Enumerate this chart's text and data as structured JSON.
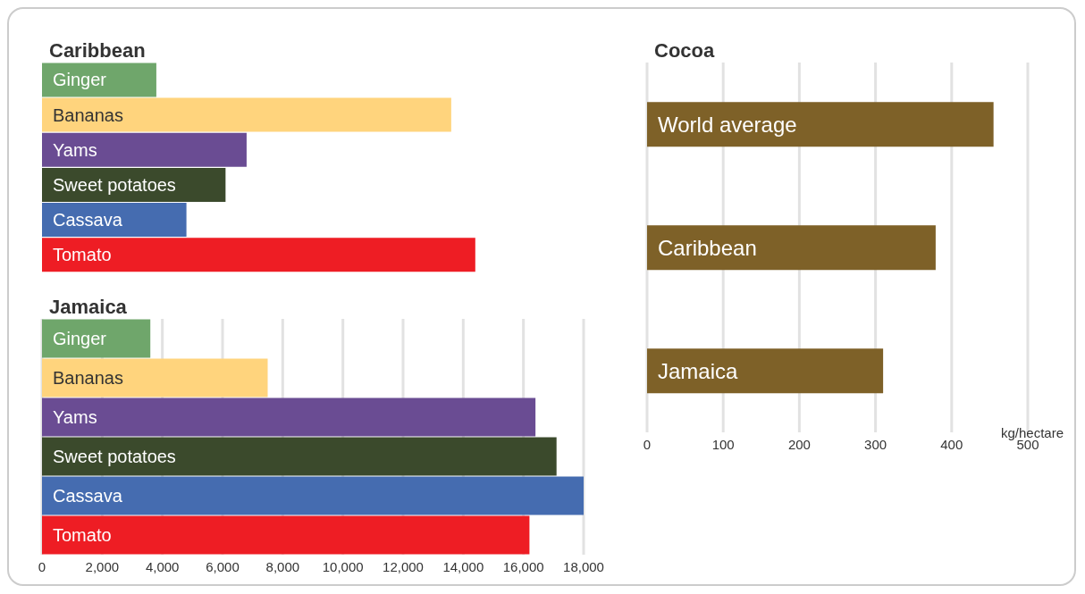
{
  "chart_data": [
    {
      "type": "bar",
      "orientation": "horizontal",
      "title": "Caribbean",
      "categories": [
        "Ginger",
        "Bananas",
        "Yams",
        "Sweet potatoes",
        "Cassava",
        "Tomato"
      ],
      "values": [
        3800,
        13600,
        6800,
        6100,
        4800,
        14400
      ],
      "colors": [
        "#6fa66b",
        "#ffd47d",
        "#6a4c93",
        "#3b4a2c",
        "#456cb0",
        "#ee1d24"
      ],
      "xlim": [
        0,
        18000
      ],
      "xticks": [
        0,
        2000,
        4000,
        6000,
        8000,
        10000,
        12000,
        14000,
        16000,
        18000
      ],
      "grid": "x",
      "tick_labels": "y"
    },
    {
      "type": "bar",
      "orientation": "horizontal",
      "title": "Jamaica",
      "categories": [
        "Ginger",
        "Bananas",
        "Yams",
        "Sweet potatoes",
        "Cassava",
        "Tomato"
      ],
      "values": [
        3600,
        7500,
        16400,
        17100,
        18000,
        16200
      ],
      "colors": [
        "#6fa66b",
        "#ffd47d",
        "#6a4c93",
        "#3b4a2c",
        "#456cb0",
        "#ee1d24"
      ],
      "xlim": [
        0,
        18000
      ],
      "xticks": [
        0,
        {
          "value": 2000,
          "label": "2,000"
        },
        {
          "value": 4000,
          "label": "4,000"
        },
        {
          "value": 6000,
          "label": "6,000"
        },
        {
          "value": 8000,
          "label": "8,000"
        },
        {
          "value": 10000,
          "label": "10,000"
        },
        {
          "value": 12000,
          "label": "12,000"
        },
        {
          "value": 14000,
          "label": "14,000"
        },
        {
          "value": 16000,
          "label": "16,000"
        },
        {
          "value": 18000,
          "label": "18,000"
        }
      ],
      "grid": "x"
    },
    {
      "type": "bar",
      "orientation": "horizontal",
      "title": "Cocoa",
      "xlabel": "kg/hectare",
      "categories": [
        "World average",
        "Caribbean",
        "Jamaica"
      ],
      "values": [
        455,
        379,
        310
      ],
      "colors": [
        "#7e6128",
        "#7e6128",
        "#7e6128"
      ],
      "xlim": [
        0,
        500
      ],
      "xticks": [
        0,
        100,
        200,
        300,
        400,
        500
      ],
      "grid": "x"
    }
  ]
}
